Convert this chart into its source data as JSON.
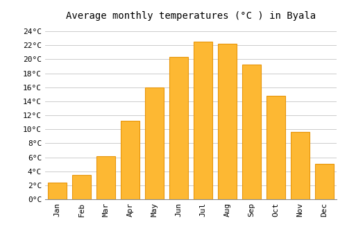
{
  "title": "Average monthly temperatures (°C ) in Byala",
  "months": [
    "Jan",
    "Feb",
    "Mar",
    "Apr",
    "May",
    "Jun",
    "Jul",
    "Aug",
    "Sep",
    "Oct",
    "Nov",
    "Dec"
  ],
  "values": [
    2.4,
    3.5,
    6.2,
    11.2,
    16.0,
    20.3,
    22.5,
    22.2,
    19.2,
    14.8,
    9.6,
    5.1
  ],
  "bar_color": "#FDB833",
  "bar_edge_color": "#E8950A",
  "background_color": "#FFFFFF",
  "grid_color": "#CCCCCC",
  "ytick_labels": [
    "0°C",
    "2°C",
    "4°C",
    "6°C",
    "8°C",
    "10°C",
    "12°C",
    "14°C",
    "16°C",
    "18°C",
    "20°C",
    "22°C",
    "24°C"
  ],
  "ytick_values": [
    0,
    2,
    4,
    6,
    8,
    10,
    12,
    14,
    16,
    18,
    20,
    22,
    24
  ],
  "ylim": [
    0,
    25
  ],
  "title_fontsize": 10,
  "tick_fontsize": 8,
  "font_family": "monospace"
}
